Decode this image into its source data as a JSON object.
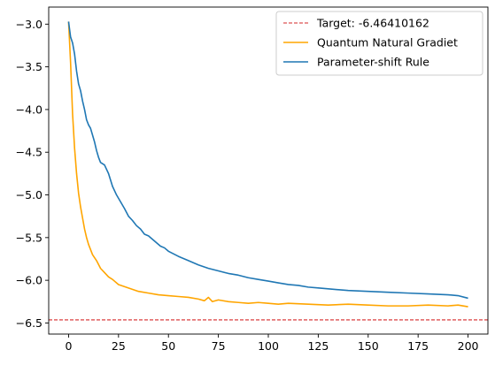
{
  "chart_data": {
    "type": "line",
    "title": "",
    "xlabel": "",
    "ylabel": "",
    "xlim": [
      -9.95,
      209.95
    ],
    "ylim": [
      -6.63,
      -2.8
    ],
    "x_ticks": [
      0,
      25,
      50,
      75,
      100,
      125,
      150,
      175,
      200
    ],
    "x_tick_labels": [
      "0",
      "25",
      "50",
      "75",
      "100",
      "125",
      "150",
      "175",
      "200"
    ],
    "y_ticks": [
      -3.0,
      -3.5,
      -4.0,
      -4.5,
      -5.0,
      -5.5,
      -6.0,
      -6.5
    ],
    "y_tick_labels": [
      "−3.0",
      "−3.5",
      "−4.0",
      "−4.5",
      "−5.0",
      "−5.5",
      "−6.0",
      "−6.5"
    ],
    "grid": false,
    "legend_position": "top-right",
    "reference_line": {
      "name": "Target: -6.46410162",
      "value": -6.46410162,
      "color": "#d62728",
      "style": "dashed"
    },
    "series": [
      {
        "name": "Quantum Natural Gradiet",
        "color": "#ffa500",
        "x": [
          0,
          1,
          2,
          3,
          4,
          5,
          6,
          7,
          8,
          9,
          10,
          12,
          14,
          16,
          18,
          20,
          22,
          25,
          30,
          35,
          40,
          45,
          50,
          55,
          60,
          65,
          68,
          70,
          72,
          75,
          80,
          85,
          90,
          95,
          100,
          105,
          110,
          120,
          130,
          140,
          150,
          160,
          170,
          180,
          190,
          195,
          200
        ],
        "y": [
          -2.97,
          -3.45,
          -4.05,
          -4.45,
          -4.75,
          -4.98,
          -5.14,
          -5.27,
          -5.4,
          -5.5,
          -5.58,
          -5.7,
          -5.77,
          -5.86,
          -5.91,
          -5.96,
          -5.99,
          -6.05,
          -6.09,
          -6.13,
          -6.15,
          -6.17,
          -6.18,
          -6.19,
          -6.2,
          -6.22,
          -6.24,
          -6.2,
          -6.25,
          -6.23,
          -6.25,
          -6.26,
          -6.27,
          -6.26,
          -6.27,
          -6.28,
          -6.27,
          -6.28,
          -6.29,
          -6.28,
          -6.29,
          -6.3,
          -6.3,
          -6.29,
          -6.3,
          -6.29,
          -6.31
        ]
      },
      {
        "name": "Parameter-shift Rule",
        "color": "#1f77b4",
        "x": [
          0,
          1,
          2,
          3,
          4,
          5,
          6,
          7,
          8,
          9,
          10,
          11,
          12,
          13,
          14,
          15,
          16,
          18,
          20,
          22,
          24,
          26,
          28,
          30,
          32,
          34,
          36,
          38,
          40,
          42,
          44,
          46,
          48,
          50,
          55,
          60,
          65,
          70,
          75,
          80,
          85,
          90,
          95,
          100,
          105,
          110,
          115,
          120,
          125,
          130,
          140,
          150,
          160,
          170,
          180,
          190,
          195,
          200
        ],
        "y": [
          -2.97,
          -3.15,
          -3.22,
          -3.35,
          -3.55,
          -3.7,
          -3.78,
          -3.9,
          -4.0,
          -4.12,
          -4.18,
          -4.22,
          -4.3,
          -4.38,
          -4.48,
          -4.56,
          -4.62,
          -4.65,
          -4.75,
          -4.9,
          -5.0,
          -5.08,
          -5.16,
          -5.25,
          -5.3,
          -5.36,
          -5.4,
          -5.46,
          -5.48,
          -5.52,
          -5.56,
          -5.6,
          -5.62,
          -5.66,
          -5.72,
          -5.77,
          -5.82,
          -5.86,
          -5.89,
          -5.92,
          -5.94,
          -5.97,
          -5.99,
          -6.01,
          -6.03,
          -6.05,
          -6.06,
          -6.08,
          -6.09,
          -6.1,
          -6.12,
          -6.13,
          -6.14,
          -6.15,
          -6.16,
          -6.17,
          -6.18,
          -6.21
        ]
      }
    ]
  }
}
